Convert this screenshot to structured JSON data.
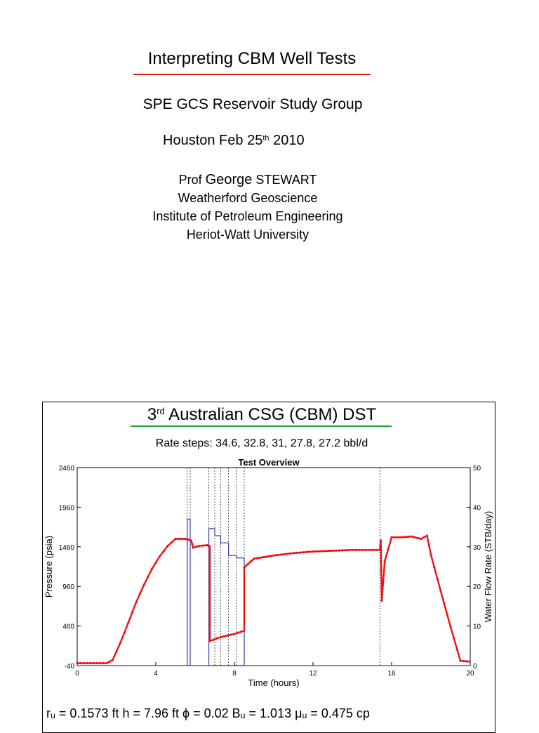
{
  "title": "Interpreting  CBM  Well  Tests",
  "subtitle": "SPE  GCS  Reservoir  Study  Group",
  "date_main": "Houston  Feb 25",
  "date_sup": "th",
  "date_year": " 2010",
  "author": {
    "prefix": "Prof ",
    "first": "George",
    "last": " STEWART",
    "line2": "Weatherford  Geoscience",
    "line3": "Institute  of Petroleum Engineering",
    "line4": "Heriot-Watt  University"
  },
  "slide2": {
    "title_num": "3",
    "title_sup": "rd",
    "title_rest": "  Australian  CSG  (CBM)  DST",
    "rate_steps": "Rate  steps:  34.6, 32.8, 31, 27.8, 27.2 bbl/d",
    "params": "rᵤ = 0.1573 ft     h = 7.96 ft     ϕ = 0.02     Bᵤ = 1.013     μᵤ = 0.475 cp"
  },
  "colors": {
    "accent_red": "#e0201a",
    "accent_green": "#22a035",
    "pressure": "#ee1111",
    "rate": "#3a3aa0"
  },
  "chart_data": {
    "type": "line",
    "title": "Test Overview",
    "xlabel": "Time (hours)",
    "ylabel": "Pressure (psia)",
    "y2label": "Water Flow Rate (STB/day)",
    "xlim": [
      0,
      20
    ],
    "ylim": [
      -40,
      2460
    ],
    "y2lim": [
      0,
      50
    ],
    "xticks": [
      "0",
      "4",
      "8",
      "12",
      "16",
      "20"
    ],
    "yticks": [
      "2460",
      "1960",
      "1460",
      "960",
      "460",
      "-40"
    ],
    "y2ticks": [
      "50",
      "40",
      "30",
      "20",
      "10",
      "0"
    ],
    "grid": false,
    "series": [
      {
        "axis": "left",
        "x": [
          0,
          1.5,
          1.8,
          2.2,
          2.6,
          3.0,
          3.4,
          3.8,
          4.2,
          4.6,
          5.0,
          5.5,
          5.8,
          5.9,
          6.2,
          6.6,
          6.75,
          6.75,
          7.3,
          8.0,
          8.5,
          8.5,
          9.0,
          10.0,
          11.0,
          12.0,
          13.0,
          14.0,
          15.4,
          15.45,
          15.5,
          15.65,
          16.0,
          16.5,
          17.0,
          17.5,
          17.8,
          18.0,
          18.5,
          19.0,
          19.5,
          20.0
        ],
        "y": [
          -10,
          -10,
          30,
          250,
          500,
          760,
          980,
          1180,
          1340,
          1470,
          1560,
          1560,
          1540,
          1450,
          1470,
          1480,
          1470,
          270,
          320,
          360,
          400,
          1200,
          1310,
          1350,
          1380,
          1400,
          1410,
          1420,
          1420,
          1540,
          780,
          1280,
          1580,
          1580,
          1590,
          1560,
          1600,
          1360,
          900,
          450,
          20,
          10
        ]
      },
      {
        "axis": "right",
        "x": [
          0,
          5.6,
          5.6,
          5.75,
          5.75,
          6.7,
          6.7,
          7.0,
          7.0,
          7.3,
          7.3,
          7.7,
          7.7,
          8.1,
          8.1,
          8.5,
          8.5,
          20.0
        ],
        "y": [
          0,
          0,
          37,
          37,
          0,
          0,
          34.6,
          34.6,
          32.8,
          32.8,
          31.0,
          31.0,
          27.8,
          27.8,
          27.2,
          27.2,
          0,
          0
        ]
      }
    ],
    "vlines": [
      5.6,
      5.75,
      6.7,
      7.0,
      7.3,
      7.7,
      8.1,
      8.5,
      15.4
    ]
  }
}
